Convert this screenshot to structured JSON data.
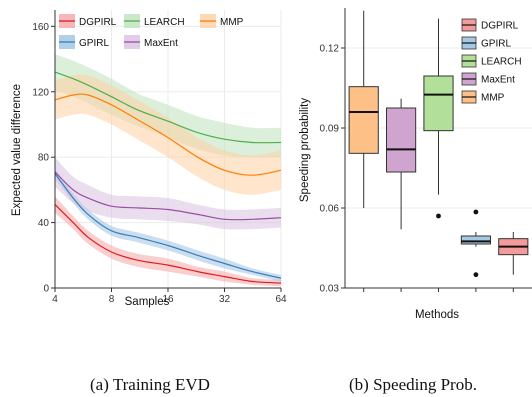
{
  "chart_data": [
    {
      "type": "line",
      "caption": "(a) Training EVD",
      "xlabel": "Samples",
      "ylabel": "Expected value difference",
      "x_ticks": [
        "4",
        "8",
        "16",
        "32",
        "64"
      ],
      "x_tick_values": [
        4,
        8,
        16,
        32,
        64
      ],
      "x_scale": "log2",
      "y_ticks": [
        "0",
        "40",
        "80",
        "120",
        "160"
      ],
      "ylim": [
        0,
        170
      ],
      "xlim": [
        4,
        64
      ],
      "grid": true,
      "legend_position": "top",
      "x": [
        4,
        5,
        6,
        8,
        11,
        16,
        23,
        32,
        45,
        64
      ],
      "series": [
        {
          "name": "DGPIRL",
          "color": "#e41a1c",
          "band": "#f4a5a7",
          "values": [
            51,
            40,
            31,
            22,
            17,
            14,
            10,
            7,
            4,
            3
          ],
          "error": [
            5,
            4,
            4,
            4,
            4,
            4,
            3,
            3,
            2,
            2
          ]
        },
        {
          "name": "GPIRL",
          "color": "#377eb8",
          "band": "#9ec3e3",
          "values": [
            70,
            55,
            45,
            35,
            31,
            26,
            20,
            15,
            10,
            6
          ],
          "error": [
            3,
            3,
            3,
            3,
            3,
            3,
            3,
            3,
            2,
            2
          ]
        },
        {
          "name": "LEARCH",
          "color": "#4daf4a",
          "band": "#bfe2bd",
          "values": [
            132,
            128,
            124,
            117,
            109,
            102,
            95,
            91,
            89,
            89
          ],
          "error": [
            11,
            11,
            11,
            11,
            10,
            10,
            10,
            10,
            9,
            9
          ]
        },
        {
          "name": "MaxEnt",
          "color": "#984ea3",
          "band": "#d9c1de",
          "values": [
            71,
            60,
            55,
            50,
            49,
            48,
            45,
            42,
            42,
            43
          ],
          "error": [
            9,
            8,
            8,
            7,
            7,
            7,
            6,
            6,
            6,
            6
          ]
        },
        {
          "name": "MMP",
          "color": "#ff7f00",
          "band": "#fdd0a2",
          "values": [
            115,
            118,
            118,
            112,
            103,
            92,
            80,
            72,
            69,
            72
          ],
          "error": [
            12,
            12,
            12,
            12,
            12,
            12,
            12,
            12,
            12,
            12
          ]
        }
      ]
    },
    {
      "type": "box",
      "caption": "(b) Speeding Prob.",
      "xlabel": "Methods",
      "ylabel": "Speeding probability",
      "y_ticks": [
        "0.03",
        "0.06",
        "0.09",
        "0.12"
      ],
      "ylim": [
        0.03,
        0.135
      ],
      "grid": true,
      "legend_position": "top-right",
      "series": [
        {
          "name": "MMP",
          "color": "#fdc086",
          "whisker_low": 0.06,
          "q1": 0.0805,
          "median": 0.096,
          "q3": 0.1055,
          "whisker_high": 0.134,
          "outliers": []
        },
        {
          "name": "MaxEnt",
          "color": "#cfa5cf",
          "whisker_low": 0.052,
          "q1": 0.0735,
          "median": 0.082,
          "q3": 0.0975,
          "whisker_high": 0.101,
          "outliers": []
        },
        {
          "name": "LEARCH",
          "color": "#b2df9a",
          "whisker_low": 0.065,
          "q1": 0.089,
          "median": 0.1025,
          "q3": 0.1095,
          "whisker_high": 0.131,
          "outliers": [
            0.057
          ]
        },
        {
          "name": "GPIRL",
          "color": "#a6c8e0",
          "whisker_low": 0.0455,
          "q1": 0.0465,
          "median": 0.0475,
          "q3": 0.0495,
          "whisker_high": 0.051,
          "outliers": [
            0.0585,
            0.035
          ]
        },
        {
          "name": "DGPIRL",
          "color": "#f49a9a",
          "whisker_low": 0.035,
          "q1": 0.0425,
          "median": 0.0455,
          "q3": 0.0485,
          "whisker_high": 0.051,
          "outliers": []
        }
      ],
      "legend_order": [
        "DGPIRL",
        "GPIRL",
        "LEARCH",
        "MaxEnt",
        "MMP"
      ]
    }
  ]
}
